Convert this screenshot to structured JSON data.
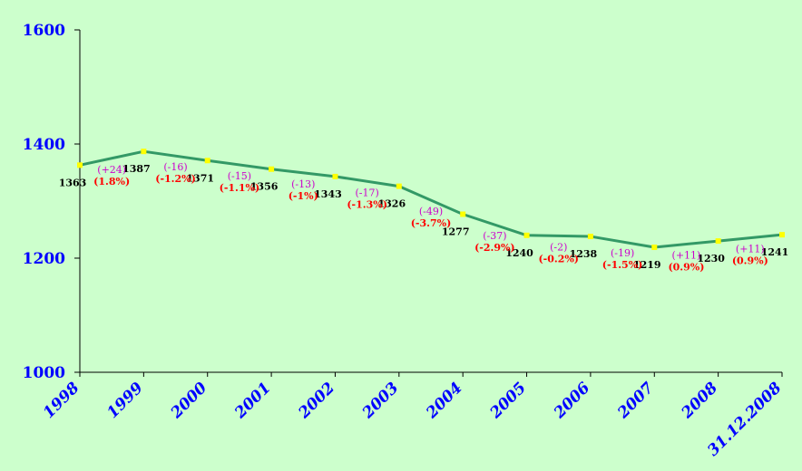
{
  "chart_data": {
    "type": "line",
    "title": "",
    "xlabel": "",
    "ylabel": "",
    "categories": [
      "1998",
      "1999",
      "2000",
      "2001",
      "2002",
      "2003",
      "2004",
      "2005",
      "2006",
      "2007",
      "2008",
      "31.12.2008"
    ],
    "series": [
      {
        "values": [
          1363,
          1387,
          1371,
          1356,
          1343,
          1326,
          1277,
          1240,
          1238,
          1219,
          1230,
          1241
        ]
      }
    ],
    "ylim": [
      1000,
      1600
    ],
    "yticks": [
      "1000",
      "1200",
      "1400",
      "1600"
    ],
    "changes": [
      {
        "abs": "(+24)",
        "pct": "(1.8%)"
      },
      {
        "abs": "(-16)",
        "pct": "(-1.2%)"
      },
      {
        "abs": "(-15)",
        "pct": "(-1.1%)"
      },
      {
        "abs": "(-13)",
        "pct": "(-1%)"
      },
      {
        "abs": "(-17)",
        "pct": "(-1.3%)"
      },
      {
        "abs": "(-49)",
        "pct": "(-3.7%)"
      },
      {
        "abs": "(-37)",
        "pct": "(-2.9%)"
      },
      {
        "abs": "(-2)",
        "pct": "(-0.2%)"
      },
      {
        "abs": "(-19)",
        "pct": "(-1.5%)"
      },
      {
        "abs": "(+11)",
        "pct": "(0.9%)"
      },
      {
        "abs": "(+11)",
        "pct": "(0.9%)"
      }
    ],
    "grid": false,
    "legend": "none",
    "colors": {
      "background": "#ccffcc",
      "line": "#339966",
      "marker": "#ffff00",
      "axis_labels": "#0000ff",
      "value_labels": "#000000",
      "change_abs": "#cc00cc",
      "change_pct": "#ff0000"
    }
  }
}
